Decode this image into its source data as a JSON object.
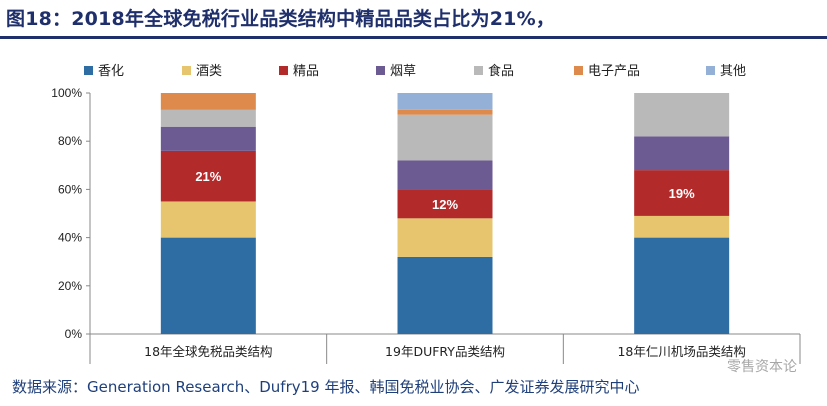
{
  "title": "图18：2018年全球免税行业品类结构中精品品类占比为21%，",
  "source": "数据来源：Generation Research、Dufry19 年报、韩国免税业协会、广发证券发展研究中心",
  "watermark": "零售资本论",
  "chart_data": {
    "type": "bar",
    "stacked": true,
    "percent": true,
    "categories": [
      "18年全球免税品类结构",
      "19年DUFRY品类结构",
      "18年仁川机场品类结构"
    ],
    "ylim": [
      0,
      100
    ],
    "yticks": [
      "0%",
      "20%",
      "40%",
      "60%",
      "80%",
      "100%"
    ],
    "legend_position": "top",
    "series": [
      {
        "name": "香化",
        "color": "#2e6da4",
        "values": [
          40,
          32,
          40
        ]
      },
      {
        "name": "酒类",
        "color": "#e6c56e",
        "values": [
          15,
          16,
          9
        ]
      },
      {
        "name": "精品",
        "color": "#b22a2a",
        "values": [
          21,
          12,
          19
        ]
      },
      {
        "name": "烟草",
        "color": "#6c5a93",
        "values": [
          10,
          12,
          14
        ]
      },
      {
        "name": "食品",
        "color": "#b9b9b9",
        "values": [
          7,
          19,
          18
        ]
      },
      {
        "name": "电子产品",
        "color": "#de8a4c",
        "values": [
          7,
          2,
          0
        ]
      },
      {
        "name": "其他",
        "color": "#95b0d6",
        "values": [
          0,
          7,
          0
        ]
      }
    ],
    "data_labels": [
      {
        "category_index": 0,
        "series_index": 2,
        "text": "21%"
      },
      {
        "category_index": 1,
        "series_index": 2,
        "text": "12%"
      },
      {
        "category_index": 2,
        "series_index": 2,
        "text": "19%"
      }
    ]
  }
}
